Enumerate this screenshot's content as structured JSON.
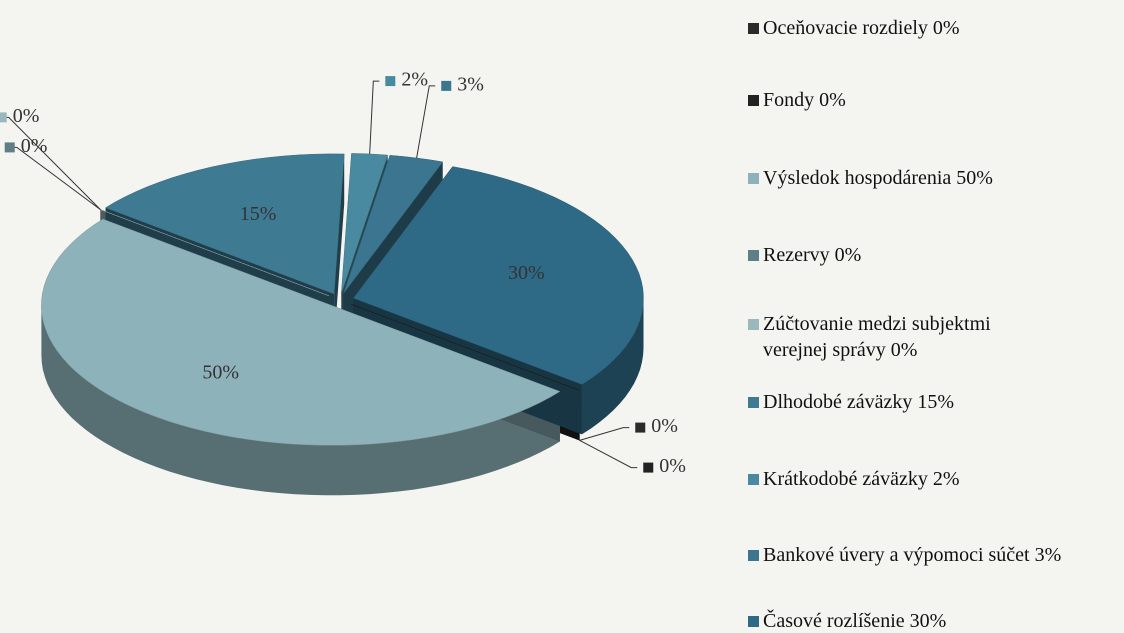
{
  "chart_data": {
    "type": "pie",
    "categories": [
      "Oceňovacie rozdiely",
      "Fondy",
      "Výsledok hospodárenia",
      "Rezervy",
      "Zúčtovanie medzi subjektmi verejnej správy",
      "Dlhodobé záväzky",
      "Krátkodobé záväzky",
      "Bankové úvery a výpomoci súčet",
      "Časové rozlíšenie"
    ],
    "values": [
      0,
      0,
      50,
      0,
      0,
      15,
      2,
      3,
      30
    ],
    "value_labels": [
      "0%",
      "0%",
      "50%",
      "0%",
      "0%",
      "15%",
      "2%",
      "3%",
      "30%"
    ],
    "colors": [
      "#2b2b2b",
      "#222222",
      "#8db2ba",
      "#5f7f87",
      "#9bb8bf",
      "#3e7b93",
      "#4a8aa0",
      "#3b7590",
      "#2e6a86"
    ],
    "legend": "right"
  }
}
